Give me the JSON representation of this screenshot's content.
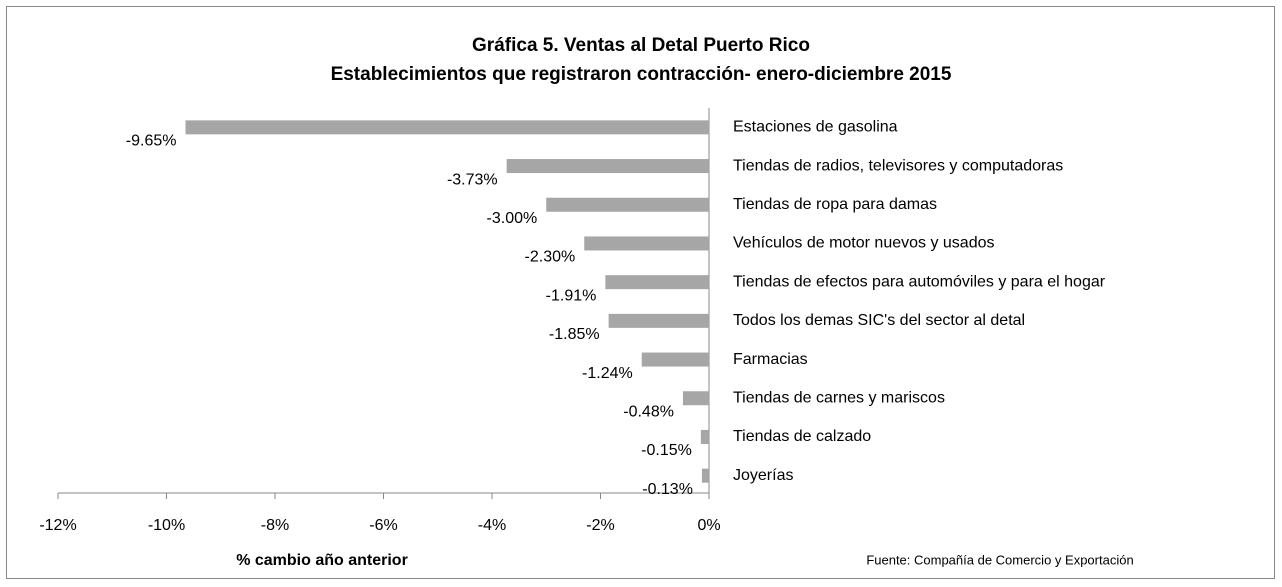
{
  "chart_data": {
    "type": "bar",
    "orientation": "horizontal",
    "title": "Gráfica 5.  Ventas al Detal Puerto Rico",
    "subtitle": "Establecimientos que registraron contracción-  enero-diciembre 2015",
    "categories": [
      "Estaciones de gasolina",
      "Tiendas de radios, televisores y computadoras",
      "Tiendas de ropa para damas",
      "Vehículos de motor nuevos y usados",
      "Tiendas de efectos para automóviles y para el hogar",
      "Todos los demas SIC's del sector al detal",
      "Farmacias",
      "Tiendas de carnes y mariscos",
      "Tiendas de calzado",
      "Joyerías"
    ],
    "values": [
      -9.65,
      -3.73,
      -3.0,
      -2.3,
      -1.91,
      -1.85,
      -1.24,
      -0.48,
      -0.15,
      -0.13
    ],
    "value_labels": [
      "-9.65%",
      "-3.73%",
      "-3.00%",
      "-2.30%",
      "-1.91%",
      "-1.85%",
      "-1.24%",
      "-0.48%",
      "-0.15%",
      "-0.13%"
    ],
    "color": "#a6a6a6",
    "xlim": [
      -12,
      0
    ],
    "xticks": [
      {
        "value": -12,
        "label": "-12%"
      },
      {
        "value": -10,
        "label": "-10%"
      },
      {
        "value": -8,
        "label": "-8%"
      },
      {
        "value": -6,
        "label": "-6%"
      },
      {
        "value": -4,
        "label": "-4%"
      },
      {
        "value": -2,
        "label": "-2%"
      },
      {
        "value": 0,
        "label": "0%"
      }
    ],
    "x_label": "% cambio año anterior",
    "source": "Fuente:  Compañía de Comercio y Exportación",
    "grid": false
  }
}
